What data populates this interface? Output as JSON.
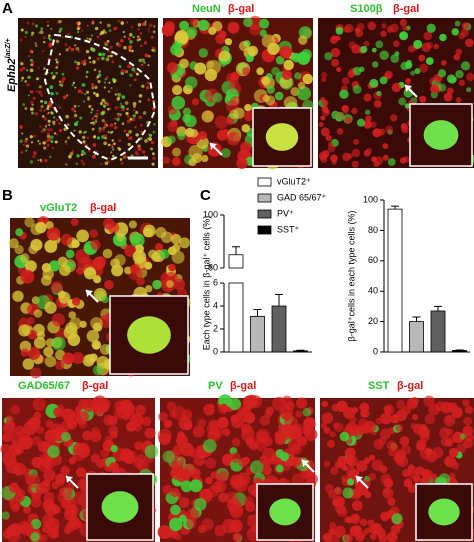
{
  "panels": {
    "A": {
      "label": "A",
      "genotype": "Ephb2",
      "genotype_sup": "lacZ/+",
      "img2": [
        "NeuN",
        "β-gal"
      ],
      "img3": [
        "S100β",
        "β-gal"
      ]
    },
    "B": {
      "label": "B",
      "img": [
        "vGluT2",
        "β-gal"
      ]
    },
    "C": {
      "label": "C"
    },
    "D": {
      "img1": [
        "GAD65/67",
        "β-gal"
      ],
      "img2": [
        "PV",
        "β-gal"
      ],
      "img3": [
        "SST",
        "β-gal"
      ]
    }
  },
  "chart_data": [
    {
      "type": "bar",
      "ylabel": "Each type cells in β-gal⁺ cells (%)",
      "categories": [
        "vGluT2⁺",
        "GAD 65/67⁺",
        "PV⁺",
        "SST⁺"
      ],
      "colors": [
        "#ffffff",
        "#b8b8b8",
        "#606060",
        "#000000"
      ],
      "values": [
        85,
        3.1,
        4,
        0.1
      ],
      "errors": [
        3,
        0.6,
        1,
        0.05
      ],
      "ylim": [
        0,
        100
      ],
      "broken_range": [
        6,
        80
      ],
      "yticks": [
        0,
        2,
        4,
        6,
        80,
        100
      ]
    },
    {
      "type": "bar",
      "ylabel": "β-gal⁺cells in each type cells (%)",
      "colors": [
        "#ffffff",
        "#b8b8b8",
        "#606060",
        "#000000"
      ],
      "values": [
        94,
        20,
        27,
        1
      ],
      "errors": [
        2,
        3,
        3,
        0.3
      ],
      "ylim": [
        0,
        100
      ],
      "yticks": [
        0,
        20,
        40,
        60,
        80,
        100
      ]
    }
  ]
}
